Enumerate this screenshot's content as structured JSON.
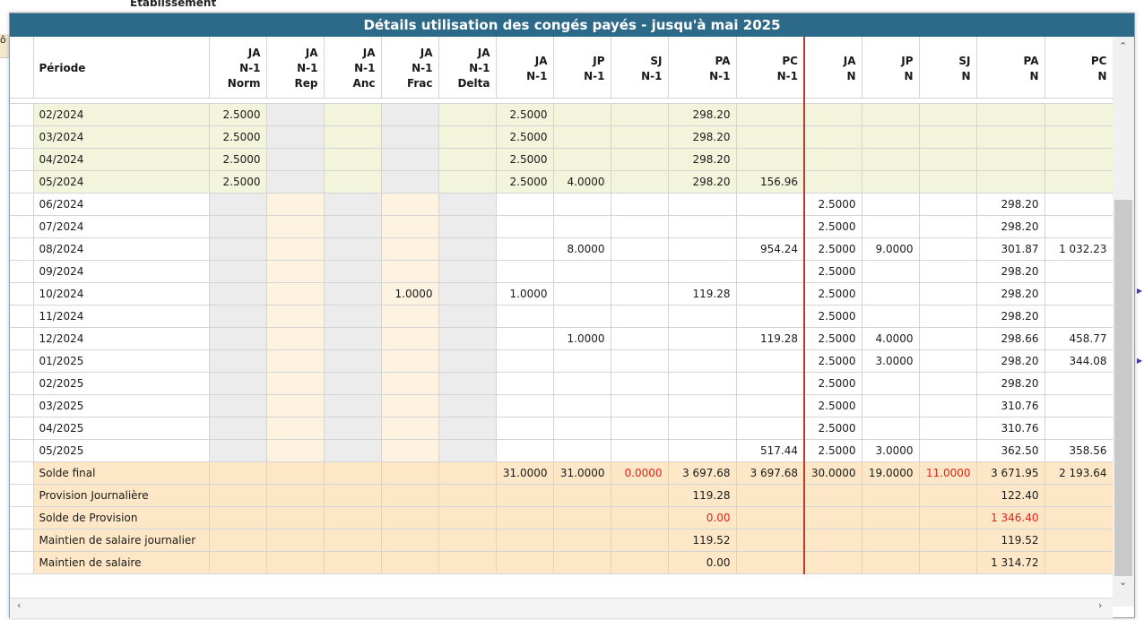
{
  "background": {
    "label_etab": "Etablissement",
    "label_left": "ô"
  },
  "dialog": {
    "title": "Détails utilisation des congés payés - jusqu'à mai 2025"
  },
  "headers": [
    [
      "Période"
    ],
    [
      "JA",
      "N-1",
      "Norm"
    ],
    [
      "JA",
      "N-1",
      "Rep"
    ],
    [
      "JA",
      "N-1",
      "Anc"
    ],
    [
      "JA",
      "N-1",
      "Frac"
    ],
    [
      "JA",
      "N-1",
      "Delta"
    ],
    [
      "JA",
      "N-1"
    ],
    [
      "JP",
      "N-1"
    ],
    [
      "SJ",
      "N-1"
    ],
    [
      "PA",
      "N-1"
    ],
    [
      "PC",
      "N-1"
    ],
    [
      "JA",
      "N"
    ],
    [
      "JP",
      "N"
    ],
    [
      "SJ",
      "N"
    ],
    [
      "PA",
      "N"
    ],
    [
      "PC",
      "N"
    ]
  ],
  "rows": [
    {
      "style": "g",
      "cells": [
        "02/2024",
        "2.5000",
        "",
        "",
        "",
        "",
        "2.5000",
        "",
        "",
        "298.20",
        "",
        "",
        "",
        "",
        "",
        ""
      ]
    },
    {
      "style": "g",
      "cells": [
        "03/2024",
        "2.5000",
        "",
        "",
        "",
        "",
        "2.5000",
        "",
        "",
        "298.20",
        "",
        "",
        "",
        "",
        "",
        ""
      ]
    },
    {
      "style": "g",
      "cells": [
        "04/2024",
        "2.5000",
        "",
        "",
        "",
        "",
        "2.5000",
        "",
        "",
        "298.20",
        "",
        "",
        "",
        "",
        "",
        ""
      ]
    },
    {
      "style": "g",
      "cells": [
        "05/2024",
        "2.5000",
        "",
        "",
        "",
        "",
        "2.5000",
        "4.0000",
        "",
        "298.20",
        "156.96",
        "",
        "",
        "",
        "",
        ""
      ]
    },
    {
      "style": "w",
      "cells": [
        "06/2024",
        "",
        "",
        "",
        "",
        "",
        "",
        "",
        "",
        "",
        "",
        "2.5000",
        "",
        "",
        "298.20",
        ""
      ]
    },
    {
      "style": "w",
      "cells": [
        "07/2024",
        "",
        "",
        "",
        "",
        "",
        "",
        "",
        "",
        "",
        "",
        "2.5000",
        "",
        "",
        "298.20",
        ""
      ]
    },
    {
      "style": "w",
      "cells": [
        "08/2024",
        "",
        "",
        "",
        "",
        "",
        "",
        "8.0000",
        "",
        "",
        "954.24",
        "2.5000",
        "9.0000",
        "",
        "301.87",
        "1 032.23"
      ]
    },
    {
      "style": "w",
      "cells": [
        "09/2024",
        "",
        "",
        "",
        "",
        "",
        "",
        "",
        "",
        "",
        "",
        "2.5000",
        "",
        "",
        "298.20",
        ""
      ]
    },
    {
      "style": "w",
      "cells": [
        "10/2024",
        "",
        "",
        "",
        "1.0000",
        "",
        "1.0000",
        "",
        "",
        "119.28",
        "",
        "2.5000",
        "",
        "",
        "298.20",
        ""
      ]
    },
    {
      "style": "w",
      "cells": [
        "11/2024",
        "",
        "",
        "",
        "",
        "",
        "",
        "",
        "",
        "",
        "",
        "2.5000",
        "",
        "",
        "298.20",
        ""
      ]
    },
    {
      "style": "w",
      "cells": [
        "12/2024",
        "",
        "",
        "",
        "",
        "",
        "",
        "1.0000",
        "",
        "",
        "119.28",
        "2.5000",
        "4.0000",
        "",
        "298.66",
        "458.77"
      ]
    },
    {
      "style": "w",
      "cells": [
        "01/2025",
        "",
        "",
        "",
        "",
        "",
        "",
        "",
        "",
        "",
        "",
        "2.5000",
        "3.0000",
        "",
        "298.20",
        "344.08"
      ]
    },
    {
      "style": "w",
      "cells": [
        "02/2025",
        "",
        "",
        "",
        "",
        "",
        "",
        "",
        "",
        "",
        "",
        "2.5000",
        "",
        "",
        "298.20",
        ""
      ]
    },
    {
      "style": "w",
      "cells": [
        "03/2025",
        "",
        "",
        "",
        "",
        "",
        "",
        "",
        "",
        "",
        "",
        "2.5000",
        "",
        "",
        "310.76",
        ""
      ]
    },
    {
      "style": "w",
      "cells": [
        "04/2025",
        "",
        "",
        "",
        "",
        "",
        "",
        "",
        "",
        "",
        "",
        "2.5000",
        "",
        "",
        "310.76",
        ""
      ]
    },
    {
      "style": "w",
      "cells": [
        "05/2025",
        "",
        "",
        "",
        "",
        "",
        "",
        "",
        "",
        "",
        "517.44",
        "2.5000",
        "3.0000",
        "",
        "362.50",
        "358.56"
      ]
    },
    {
      "style": "o",
      "cells": [
        "Solde final",
        "",
        "",
        "",
        "",
        "",
        "31.0000",
        "31.0000",
        "0.0000",
        "3 697.68",
        "3 697.68",
        "30.0000",
        "19.0000",
        "11.0000",
        "3 671.95",
        "2 193.64"
      ],
      "red": [
        8,
        13
      ]
    },
    {
      "style": "o",
      "cells": [
        "Provision Journalière",
        "",
        "",
        "",
        "",
        "",
        "",
        "",
        "",
        "119.28",
        "",
        "",
        "",
        "",
        "122.40",
        ""
      ]
    },
    {
      "style": "o",
      "cells": [
        "Solde de Provision",
        "",
        "",
        "",
        "",
        "",
        "",
        "",
        "",
        "0.00",
        "",
        "",
        "",
        "",
        "1 346.40",
        ""
      ],
      "red": [
        9,
        14
      ]
    },
    {
      "style": "o",
      "cells": [
        "Maintien de salaire journalier",
        "",
        "",
        "",
        "",
        "",
        "",
        "",
        "",
        "119.52",
        "",
        "",
        "",
        "",
        "119.52",
        ""
      ]
    },
    {
      "style": "o",
      "cells": [
        "Maintien de salaire",
        "",
        "",
        "",
        "",
        "",
        "",
        "",
        "",
        "0.00",
        "",
        "",
        "",
        "",
        "1 314.72",
        ""
      ]
    }
  ]
}
